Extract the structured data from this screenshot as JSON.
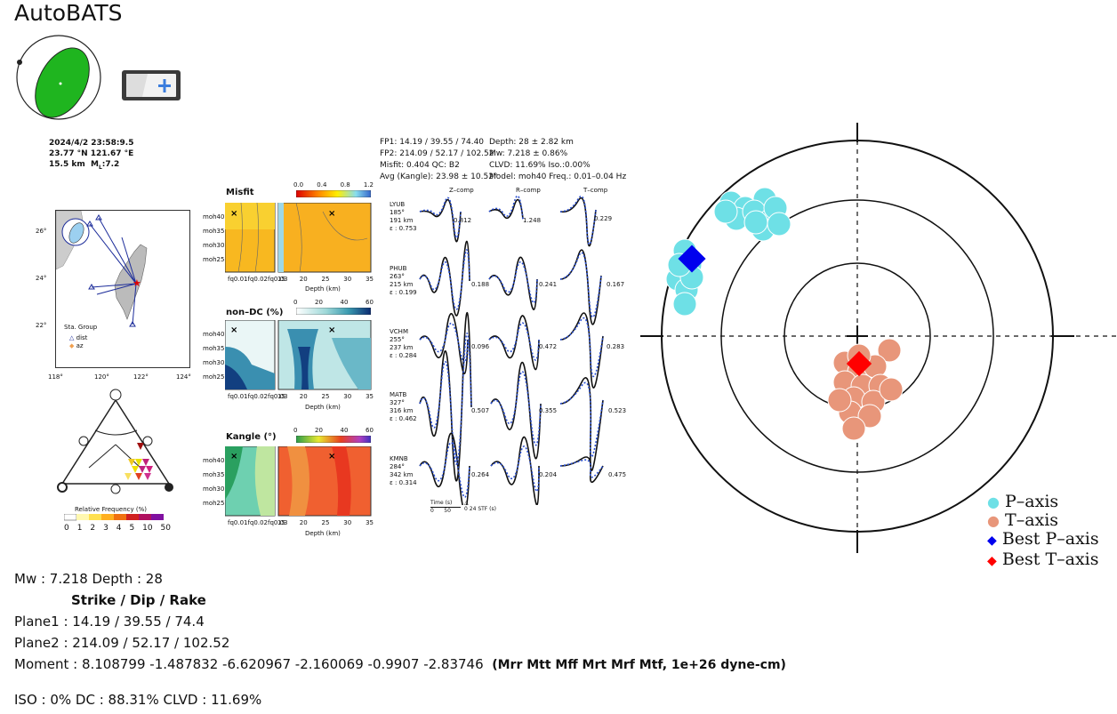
{
  "header": {
    "title": "AutoBATS"
  },
  "event": {
    "date_time": "2024/4/2   23:58:9.5",
    "lat_lon": "23.77 °N  121.67 °E",
    "depth": "15.5 km",
    "magnitude_prefix": "M",
    "magnitude_sub": "L",
    "magnitude": ":7.2"
  },
  "solution_box": {
    "fp1": "FP1: 14.19 / 39.55 / 74.40",
    "fp2": "FP2: 214.09 / 52.17 / 102.52",
    "misfit_qc": "Misfit: 0.404   QC: B2",
    "avg_kangle": "Avg (Kangle): 23.98 ± 10.52°",
    "depth": "Depth: 28 ± 2.82 km",
    "mw": "Mw: 7.218 ± 0.86%",
    "clvd_iso": "CLVD: 11.69%   Iso.:0.00%",
    "model_freq": "Model: moh40   Freq.: 0.01–0.04 Hz"
  },
  "map": {
    "lat_ticks": [
      "26°",
      "24°",
      "22°"
    ],
    "lon_ticks": [
      "118°",
      "120°",
      "122°",
      "124°"
    ],
    "legend_title": "Sta. Group",
    "legend_items": [
      "dist",
      "az"
    ]
  },
  "ternary": {
    "legend_title": "Relative Frequency (%)",
    "scale_labels": [
      "0",
      "1",
      "2",
      "3",
      "4",
      "5",
      "10",
      "50"
    ]
  },
  "grids": [
    {
      "title": "Misfit",
      "scale_labels": [
        "0.0",
        "0.4",
        "0.8",
        "1.2"
      ]
    },
    {
      "title": "non–DC (%)",
      "scale_labels": [
        "0",
        "20",
        "40",
        "60"
      ]
    },
    {
      "title": "Kangle (°)",
      "scale_labels": [
        "0",
        "20",
        "40",
        "60"
      ]
    }
  ],
  "grid_axes": {
    "models": [
      "moh40",
      "moh35",
      "moh30",
      "moh25"
    ],
    "freqs": [
      "fq0.01",
      "fq0.02",
      "fq0.03"
    ],
    "depth_ticks": [
      "15",
      "20",
      "25",
      "30",
      "35"
    ],
    "depth_label": "Depth (km)"
  },
  "waveforms": {
    "columns": [
      "Z–comp",
      "R–comp",
      "T–comp"
    ],
    "stations": [
      {
        "name": "LYUB",
        "az": "185°",
        "dist": "191 km",
        "eps": "ε : 0.753",
        "vals": [
          "0.812",
          "1.248",
          "0.229"
        ]
      },
      {
        "name": "PHUB",
        "az": "263°",
        "dist": "215 km",
        "eps": "ε : 0.199",
        "vals": [
          "0.188",
          "0.241",
          "0.167"
        ]
      },
      {
        "name": "VCHM",
        "az": "255°",
        "dist": "237 km",
        "eps": "ε : 0.284",
        "vals": [
          "0.096",
          "0.472",
          "0.283"
        ]
      },
      {
        "name": "MATB",
        "az": "327°",
        "dist": "316 km",
        "eps": "ε : 0.462",
        "vals": [
          "0.507",
          "0.355",
          "0.523"
        ]
      },
      {
        "name": "KMNB",
        "az": "284°",
        "dist": "342 km",
        "eps": "ε : 0.314",
        "vals": [
          "0.264",
          "0.204",
          "0.475"
        ]
      }
    ],
    "time_label": "Time (s)",
    "time_ticks": [
      "0",
      "50"
    ],
    "stf_label": "STF (s)",
    "stf_ticks": [
      "0",
      "24"
    ]
  },
  "stereonet": {
    "legend": [
      "P–axis",
      "T–axis",
      "Best P–axis",
      "Best T–axis"
    ],
    "colors": {
      "p": "#6ee0e6",
      "t": "#e8967a",
      "best_p": "#0000ee",
      "best_t": "#ff0000"
    }
  },
  "summary": {
    "mw_depth": "Mw : 7.218    Depth : 28",
    "header": "Strike  /  Dip  /  Rake",
    "plane1": "Plane1 : 14.19  /  39.55  /  74.4",
    "plane2": "Plane2 : 214.09  /  52.17  /  102.52",
    "moment": "Moment : 8.108799  -1.487832  -6.620967  -2.160069  -0.9907  -2.83746",
    "moment_unit": "(Mrr Mtt Mff Mrt Mrf Mtf,  1e+26 dyne-cm)",
    "ratios": "ISO : 0%  DC : 88.31%  CLVD : 11.69%"
  }
}
